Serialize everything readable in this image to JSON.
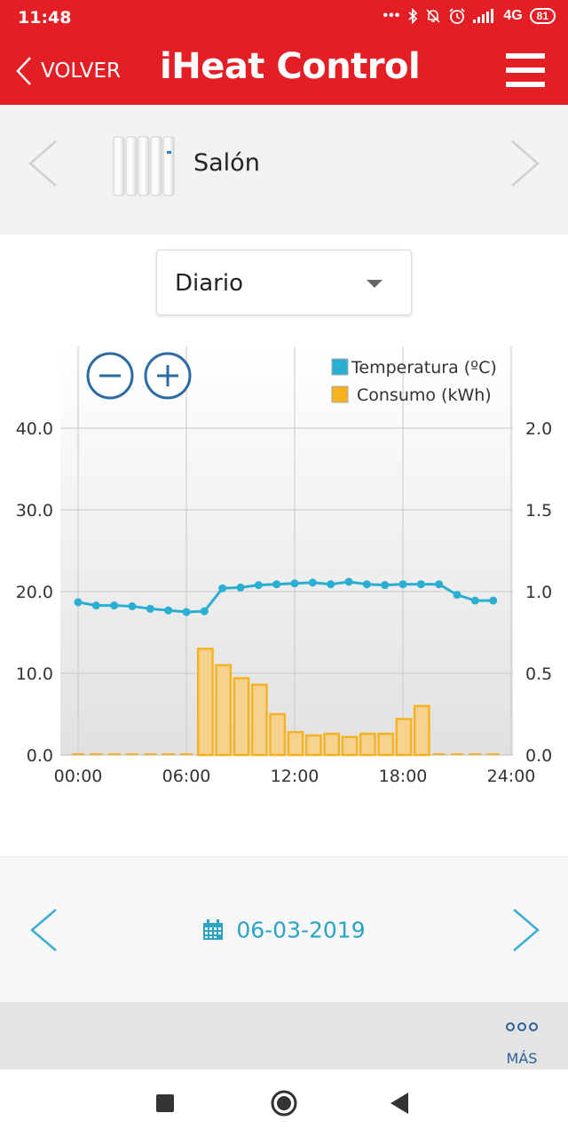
{
  "status_bar": {
    "time": "11:48",
    "network": "4G",
    "battery": "81",
    "icons": [
      "dots-icon",
      "bluetooth-icon",
      "bell-off-icon",
      "alarm-icon",
      "signal-icon",
      "battery-icon"
    ]
  },
  "app_bar": {
    "back_label": "VOLVER",
    "title": "iHeat Control"
  },
  "device": {
    "name": "Salón"
  },
  "period_select": {
    "value": "Diario"
  },
  "chart_data": {
    "type": "bar+line",
    "legend": [
      "Temperatura (ºC)",
      "Consumo (kWh)"
    ],
    "legend_position": "top-right",
    "grid": true,
    "x_ticks": [
      "00:00",
      "06:00",
      "12:00",
      "18:00",
      "24:00"
    ],
    "xlim": [
      0,
      24
    ],
    "y_left_ticks": [
      "0.0",
      "10.0",
      "20.0",
      "30.0",
      "40.0"
    ],
    "ylim_left": [
      0,
      40
    ],
    "y_right_ticks": [
      "0.0",
      "0.5",
      "1.0",
      "1.5",
      "2.0"
    ],
    "ylim_right": [
      0,
      2
    ],
    "series": [
      {
        "name": "Temperatura (ºC)",
        "type": "line",
        "color": "#2aaed2",
        "x": [
          0,
          1,
          2,
          3,
          4,
          5,
          6,
          7,
          8,
          9,
          10,
          11,
          12,
          13,
          14,
          15,
          16,
          17,
          18,
          19,
          20,
          21,
          22,
          23
        ],
        "values": [
          18.7,
          18.3,
          18.3,
          18.2,
          17.9,
          17.7,
          17.5,
          17.6,
          20.4,
          20.5,
          20.8,
          20.9,
          21.0,
          21.1,
          20.9,
          21.2,
          20.9,
          20.8,
          20.9,
          20.9,
          20.9,
          19.6,
          18.9,
          18.9
        ]
      },
      {
        "name": "Consumo (kWh)",
        "type": "bar",
        "color": "#f6b221",
        "x": [
          0,
          1,
          2,
          3,
          4,
          5,
          6,
          7,
          8,
          9,
          10,
          11,
          12,
          13,
          14,
          15,
          16,
          17,
          18,
          19,
          20,
          21,
          22,
          23
        ],
        "values": [
          0,
          0,
          0,
          0,
          0,
          0,
          0,
          0.65,
          0.55,
          0.47,
          0.43,
          0.25,
          0.14,
          0.12,
          0.13,
          0.11,
          0.13,
          0.13,
          0.22,
          0.3,
          0,
          0,
          0,
          0
        ]
      }
    ]
  },
  "date_nav": {
    "date": "06-03-2019"
  },
  "bottom_toolbar": {
    "more_label": "MÁS"
  }
}
